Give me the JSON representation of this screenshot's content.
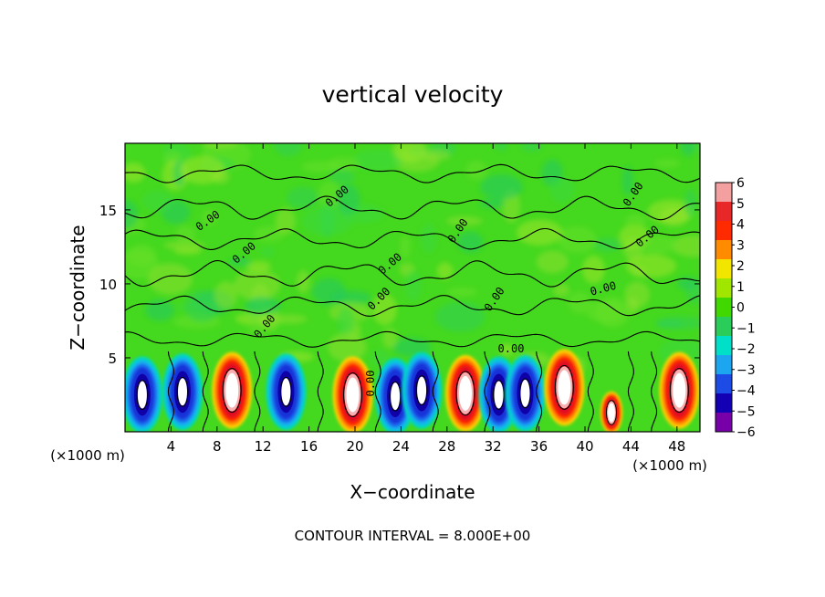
{
  "chart_data": {
    "type": "heatmap",
    "title": "vertical velocity",
    "xlabel": "X−coordinate",
    "ylabel": "Z−coordinate",
    "x_unit_left": "(×1000 m)",
    "x_unit_right": "(×1000 m)",
    "xlim": [
      0,
      50
    ],
    "ylim": [
      0,
      19.5
    ],
    "x_ticks": [
      4,
      8,
      12,
      16,
      20,
      24,
      28,
      32,
      36,
      40,
      44,
      48
    ],
    "y_ticks": [
      5,
      10,
      15
    ],
    "colorbar": {
      "levels": [
        "6",
        "5",
        "4",
        "3",
        "2",
        "1",
        "0",
        "−1",
        "−2",
        "−3",
        "−4",
        "−5",
        "−6"
      ],
      "colors": [
        "#f4a0a0",
        "#e82828",
        "#ff2a00",
        "#ff8c00",
        "#f2e600",
        "#a0e600",
        "#40d800",
        "#2acc5a",
        "#00e0c8",
        "#1ca6f0",
        "#1c4be6",
        "#1400b4",
        "#7800a8"
      ]
    },
    "contour_labels": [
      "0.00",
      "0.00",
      "0.00",
      "0.00",
      "0.00",
      "0.00",
      "0.00",
      "0.00",
      "0.00",
      "0.00",
      "0.00",
      "0.00"
    ],
    "cells": [
      {
        "x": 1.5,
        "z": 2.5,
        "sign": "down"
      },
      {
        "x": 5.0,
        "z": 2.7,
        "sign": "down"
      },
      {
        "x": 9.3,
        "z": 2.8,
        "sign": "up"
      },
      {
        "x": 14.0,
        "z": 2.7,
        "sign": "down"
      },
      {
        "x": 19.8,
        "z": 2.5,
        "sign": "up"
      },
      {
        "x": 23.5,
        "z": 2.4,
        "sign": "down"
      },
      {
        "x": 25.8,
        "z": 2.8,
        "sign": "down"
      },
      {
        "x": 29.6,
        "z": 2.6,
        "sign": "up"
      },
      {
        "x": 32.5,
        "z": 2.5,
        "sign": "down"
      },
      {
        "x": 34.8,
        "z": 2.6,
        "sign": "down"
      },
      {
        "x": 38.2,
        "z": 3.0,
        "sign": "up"
      },
      {
        "x": 42.3,
        "z": 1.3,
        "sign": "up"
      },
      {
        "x": 48.2,
        "z": 2.8,
        "sign": "up"
      }
    ],
    "footer": "CONTOUR INTERVAL = 8.000E+00"
  }
}
